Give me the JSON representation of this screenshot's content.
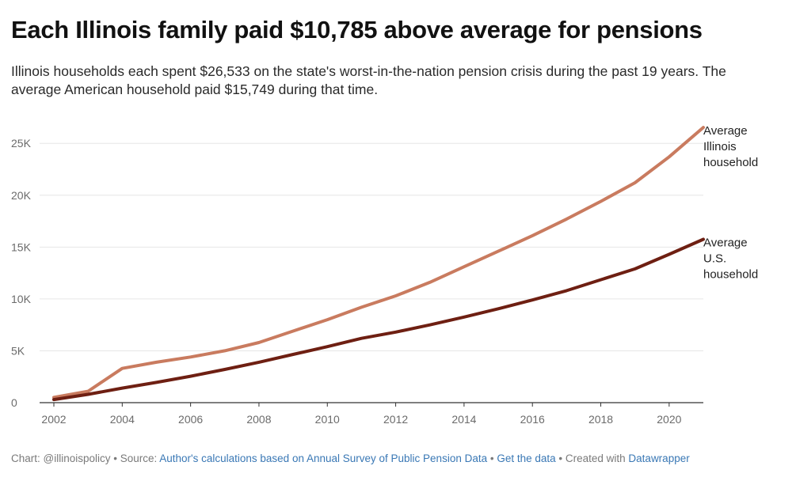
{
  "title": "Each Illinois family paid $10,785 above average for pensions",
  "subtitle": "Illinois households each spent $26,533 on the state's worst-in-the-nation pension crisis during the past 19 years. The average American household paid $15,749 during that time.",
  "footer": {
    "chart_prefix": "Chart: @illinoispolicy • Source: ",
    "source_link": "Author's calculations based on Annual Survey of Public Pension Data",
    "sep1": " • ",
    "data_link": "Get the data",
    "created": " • Created with ",
    "tool_link": "Datawrapper"
  },
  "chart_data": {
    "type": "line",
    "title": "Each Illinois family paid $10,785 above average for pensions",
    "xlabel": "",
    "ylabel": "",
    "xlim": [
      2002,
      2021
    ],
    "ylim": [
      0,
      27000
    ],
    "x_ticks": [
      2002,
      2004,
      2006,
      2008,
      2010,
      2012,
      2014,
      2016,
      2018,
      2020
    ],
    "y_ticks": [
      0,
      5000,
      10000,
      15000,
      20000,
      25000
    ],
    "y_tick_labels": [
      "0",
      "5K",
      "10K",
      "15K",
      "20K",
      "25K"
    ],
    "grid": true,
    "legend": "inline labels at line ends",
    "x": [
      2002,
      2003,
      2004,
      2005,
      2006,
      2007,
      2008,
      2009,
      2010,
      2011,
      2012,
      2013,
      2014,
      2015,
      2016,
      2017,
      2018,
      2019,
      2020,
      2021
    ],
    "series": [
      {
        "name": "Average Illinois household",
        "label_lines": [
          "Average",
          "Illinois",
          "household"
        ],
        "color": "#c97b5f",
        "values": [
          500,
          1100,
          3300,
          3900,
          4400,
          5000,
          5800,
          6900,
          8000,
          9200,
          10300,
          11600,
          13100,
          14600,
          16100,
          17700,
          19400,
          21200,
          23700,
          26533
        ]
      },
      {
        "name": "Average U.S. household",
        "label_lines": [
          "Average",
          "U.S.",
          "household"
        ],
        "color": "#6e1f12",
        "values": [
          300,
          800,
          1400,
          1950,
          2550,
          3200,
          3900,
          4650,
          5400,
          6200,
          6800,
          7500,
          8250,
          9050,
          9900,
          10800,
          11850,
          12900,
          14300,
          15749
        ]
      }
    ]
  }
}
